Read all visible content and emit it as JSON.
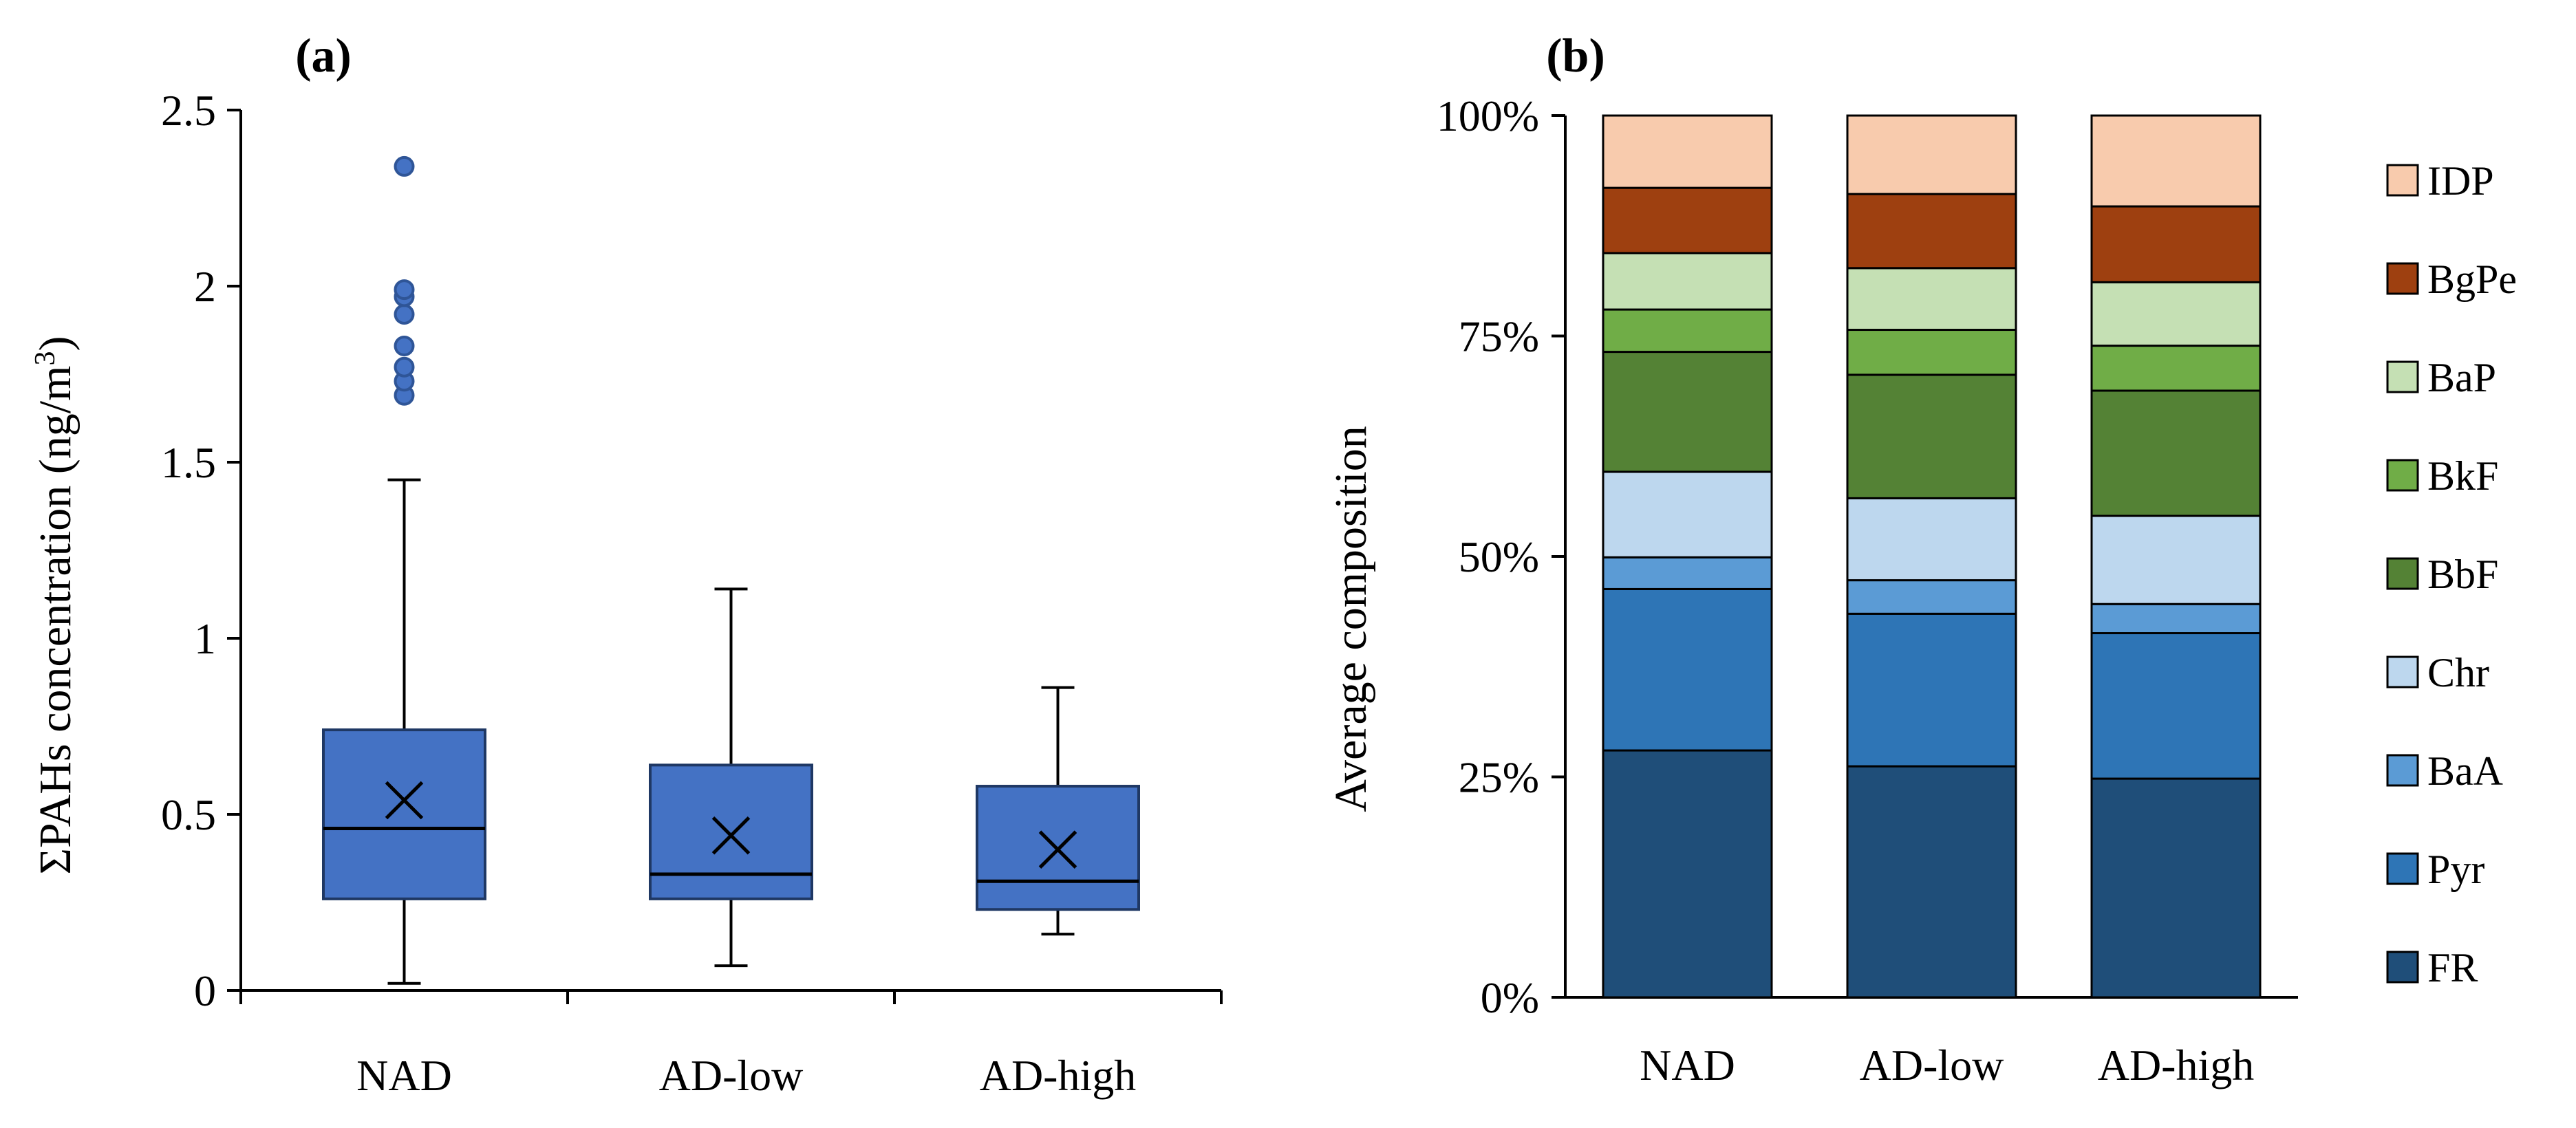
{
  "chart_data": [
    {
      "type": "box",
      "panel_label": "(a)",
      "ylabel_prefix": "ΣPAHs concentration (ng/m",
      "ylabel_sup": "3",
      "ylabel_suffix": ")",
      "ylim": [
        0,
        2.5
      ],
      "yticks": [
        0,
        0.5,
        1,
        1.5,
        2,
        2.5
      ],
      "ytick_labels": [
        "0",
        "0.5",
        "1",
        "1.5",
        "2",
        "2.5"
      ],
      "categories": [
        "NAD",
        "AD-low",
        "AD-high"
      ],
      "boxes": [
        {
          "name": "NAD",
          "min": 0.02,
          "q1": 0.26,
          "median": 0.46,
          "mean": 0.54,
          "q3": 0.74,
          "max": 1.45,
          "outliers": [
            1.69,
            1.73,
            1.77,
            1.83,
            1.92,
            1.97,
            1.99,
            2.34
          ]
        },
        {
          "name": "AD-low",
          "min": 0.07,
          "q1": 0.26,
          "median": 0.33,
          "mean": 0.44,
          "q3": 0.64,
          "max": 1.14,
          "outliers": []
        },
        {
          "name": "AD-high",
          "min": 0.16,
          "q1": 0.23,
          "median": 0.31,
          "mean": 0.4,
          "q3": 0.58,
          "max": 0.86,
          "outliers": []
        }
      ],
      "colors": {
        "box": "#4472C4",
        "box_edge": "#1F3864",
        "outlier_edge": "#2F5597"
      }
    },
    {
      "type": "stacked_bar",
      "panel_label": "(b)",
      "ylabel": "Average composition",
      "ylim": [
        0,
        100
      ],
      "yticks": [
        0,
        25,
        50,
        75,
        100
      ],
      "ytick_labels": [
        "0%",
        "25%",
        "50%",
        "75%",
        "100%"
      ],
      "categories": [
        "NAD",
        "AD-low",
        "AD-high"
      ],
      "series": [
        {
          "name": "FR",
          "color": "#1F4E79",
          "values": [
            28.0,
            26.2,
            24.8
          ]
        },
        {
          "name": "Pyr",
          "color": "#2E75B6",
          "values": [
            18.3,
            17.3,
            16.5
          ]
        },
        {
          "name": "BaA",
          "color": "#5B9BD5",
          "values": [
            3.6,
            3.8,
            3.3
          ]
        },
        {
          "name": "Chr",
          "color": "#BDD7EE",
          "values": [
            9.7,
            9.3,
            10.0
          ]
        },
        {
          "name": "BbF",
          "color": "#548235",
          "values": [
            13.6,
            14.0,
            14.2
          ]
        },
        {
          "name": "BkF",
          "color": "#70AD47",
          "values": [
            4.8,
            5.1,
            5.1
          ]
        },
        {
          "name": "BaP",
          "color": "#C5E0B4",
          "values": [
            6.4,
            7.0,
            7.2
          ]
        },
        {
          "name": "BgPe",
          "color": "#9E4010",
          "values": [
            7.4,
            8.4,
            8.6
          ]
        },
        {
          "name": "IDP",
          "color": "#F8CBAD",
          "values": [
            8.2,
            8.9,
            10.3
          ]
        }
      ],
      "legend_order": [
        "IDP",
        "BgPe",
        "BaP",
        "BkF",
        "BbF",
        "Chr",
        "BaA",
        "Pyr",
        "FR"
      ]
    }
  ]
}
